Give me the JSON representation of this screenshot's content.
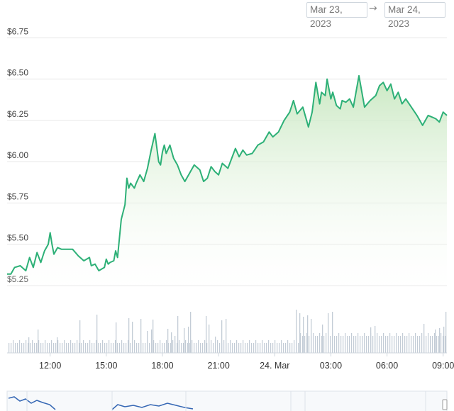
{
  "date_range": {
    "from": "Mar 23, 2023",
    "arrow": "→",
    "to": "Mar 24, 2023"
  },
  "colors": {
    "line": "#2db077",
    "fill_top": "#c7e7bf",
    "grid": "#e6e6e6",
    "volume": "#c3ccd6",
    "navigator": "#3567b4"
  },
  "chart_data": {
    "type": "area",
    "title": "",
    "xlabel": "",
    "ylabel": "",
    "ylim": [
      5.22,
      6.85
    ],
    "y_ticks": [
      6.75,
      6.5,
      6.25,
      6.0,
      5.75,
      5.5,
      5.25
    ],
    "y_tick_labels": [
      "$6.75",
      "$6.50",
      "$6.25",
      "$6.00",
      "$5.75",
      "$5.50",
      "$5.25"
    ],
    "x_range_hours": [
      9.7,
      33.2
    ],
    "x_ticks": [
      12,
      15,
      18,
      21,
      24,
      27,
      30,
      33
    ],
    "x_tick_labels": [
      "12:00",
      "15:00",
      "18:00",
      "21:00",
      "24. Mar",
      "03:00",
      "06:00",
      "09:00"
    ],
    "grid": true,
    "series": [
      {
        "x": [
          9.7,
          9.9,
          10.1,
          10.4,
          10.7,
          10.9,
          11.1,
          11.3,
          11.5,
          11.7,
          11.9,
          12.0,
          12.1,
          12.2,
          12.4,
          12.6,
          12.9,
          13.2,
          13.5,
          13.8,
          14.1,
          14.2,
          14.4,
          14.6,
          14.9,
          15.0,
          15.1,
          15.2,
          15.4,
          15.5,
          15.6,
          15.8,
          16.0,
          16.1,
          16.2,
          16.3,
          16.5,
          16.6,
          16.8,
          17.0,
          17.2,
          17.4,
          17.6,
          17.8,
          17.9,
          18.0,
          18.1,
          18.2,
          18.4,
          18.6,
          18.8,
          19.0,
          19.2,
          19.4,
          19.7,
          20.0,
          20.2,
          20.4,
          20.6,
          20.8,
          21.0,
          21.2,
          21.5,
          21.7,
          21.9,
          22.1,
          22.3,
          22.5,
          22.8,
          23.1,
          23.4,
          23.7,
          23.9,
          24.2,
          24.5,
          24.8,
          25.0,
          25.2,
          25.5,
          25.8,
          26.0,
          26.2,
          26.4,
          26.5,
          26.7,
          26.8,
          27.0,
          27.1,
          27.3,
          27.5,
          27.6,
          27.8,
          28.0,
          28.2,
          28.5,
          28.8,
          29.1,
          29.4,
          29.6,
          29.8,
          30.0,
          30.2,
          30.4,
          30.6,
          30.8,
          31.0,
          31.3,
          31.6,
          31.9,
          32.2,
          32.4,
          32.6,
          32.8,
          33.0,
          33.2
        ],
        "values": [
          5.32,
          5.32,
          5.36,
          5.37,
          5.34,
          5.42,
          5.36,
          5.45,
          5.39,
          5.46,
          5.5,
          5.57,
          5.5,
          5.44,
          5.48,
          5.47,
          5.47,
          5.47,
          5.43,
          5.4,
          5.42,
          5.37,
          5.38,
          5.34,
          5.36,
          5.41,
          5.38,
          5.39,
          5.4,
          5.46,
          5.42,
          5.65,
          5.74,
          5.9,
          5.84,
          5.87,
          5.84,
          5.87,
          5.92,
          5.88,
          5.96,
          6.07,
          6.17,
          6.0,
          5.98,
          6.06,
          6.1,
          6.05,
          6.1,
          6.02,
          5.98,
          5.92,
          5.88,
          5.92,
          5.98,
          5.95,
          5.88,
          5.9,
          5.97,
          5.94,
          5.92,
          5.99,
          5.96,
          6.02,
          6.08,
          6.03,
          6.07,
          6.04,
          6.05,
          6.1,
          6.12,
          6.18,
          6.15,
          6.18,
          6.25,
          6.3,
          6.37,
          6.29,
          6.33,
          6.21,
          6.3,
          6.48,
          6.35,
          6.42,
          6.4,
          6.5,
          6.38,
          6.42,
          6.34,
          6.32,
          6.37,
          6.36,
          6.38,
          6.33,
          6.52,
          6.33,
          6.37,
          6.4,
          6.46,
          6.48,
          6.43,
          6.47,
          6.38,
          6.42,
          6.35,
          6.38,
          6.33,
          6.28,
          6.22,
          6.28,
          6.27,
          6.26,
          6.24,
          6.3,
          6.28
        ]
      }
    ]
  }
}
